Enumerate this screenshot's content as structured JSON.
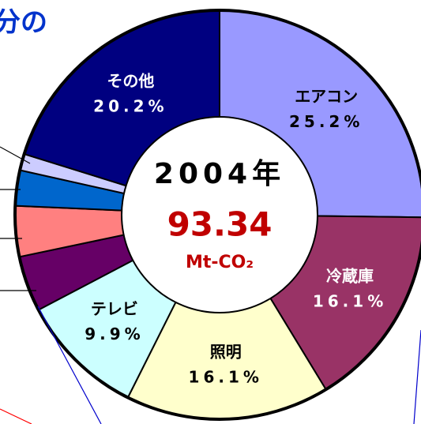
{
  "chart_data": {
    "type": "donut",
    "title": "分の",
    "center_year": "2004年",
    "center_total": "93.34",
    "center_unit": "Mt-CO₂",
    "categories": [
      "エアコン",
      "冷蔵庫",
      "照明",
      "テレビ",
      null,
      null,
      null,
      null,
      "その他"
    ],
    "values": [
      25.2,
      16.1,
      16.1,
      9.9,
      4.4,
      4.0,
      2.8,
      1.3,
      20.2
    ],
    "value_labels": [
      "25.2%",
      "16.1%",
      "16.1%",
      "9.9%",
      null,
      null,
      null,
      null,
      "20.2%"
    ],
    "colors": [
      "#9999ff",
      "#993366",
      "#ffffcc",
      "#ccffff",
      "#660066",
      "#ff8080",
      "#0066cc",
      "#ccccff",
      "#000080"
    ],
    "label_colors": [
      "#000000",
      "#ffffff",
      "#000000",
      "#000000",
      null,
      null,
      null,
      null,
      "#ffffff"
    ]
  }
}
